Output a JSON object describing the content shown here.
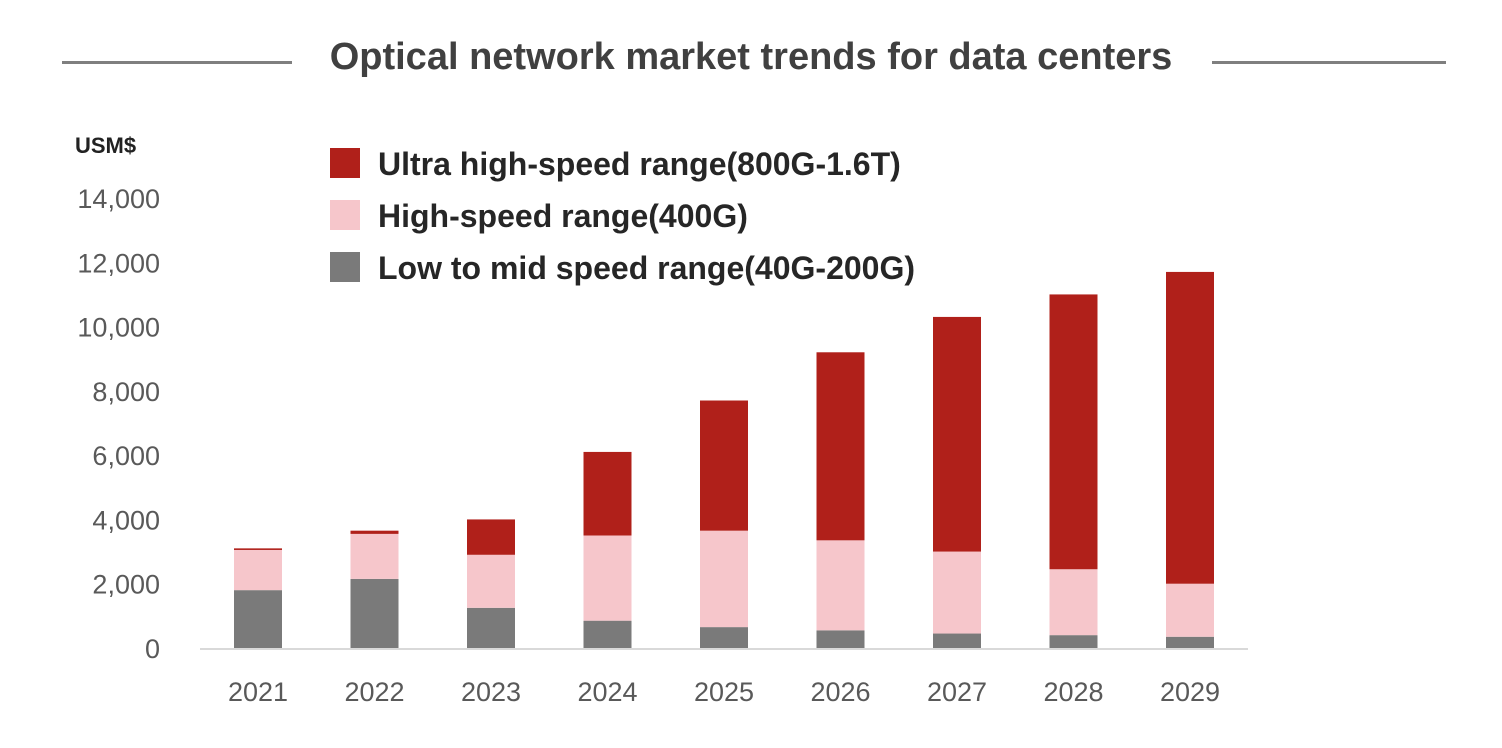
{
  "chart_data": {
    "type": "bar",
    "stacked": true,
    "title": "Optical network market trends for data centers",
    "ylabel": "USM$",
    "xlabel": "",
    "ylim": [
      0,
      14000
    ],
    "yticks": [
      0,
      2000,
      4000,
      6000,
      8000,
      10000,
      12000,
      14000
    ],
    "ytick_labels": [
      "0",
      "2,000",
      "4,000",
      "6,000",
      "8,000",
      "10,000",
      "12,000",
      "14,000"
    ],
    "categories": [
      "2021",
      "2022",
      "2023",
      "2024",
      "2025",
      "2026",
      "2027",
      "2028",
      "2029"
    ],
    "series": [
      {
        "name": "Low to mid speed range(40G-200G)",
        "color": "#7a7a7a",
        "values": [
          1800,
          2150,
          1250,
          850,
          650,
          550,
          450,
          400,
          350
        ]
      },
      {
        "name": "High-speed range(400G)",
        "color": "#f6c6cb",
        "values": [
          1250,
          1400,
          1650,
          2650,
          3000,
          2800,
          2550,
          2050,
          1650
        ]
      },
      {
        "name": "Ultra high-speed range(800G-1.6T)",
        "color": "#b0201a",
        "values": [
          50,
          100,
          1100,
          2600,
          4050,
          5850,
          7300,
          8550,
          9700
        ]
      }
    ],
    "legend_order": [
      2,
      1,
      0
    ],
    "legend_position": "top-left",
    "grid": false
  }
}
